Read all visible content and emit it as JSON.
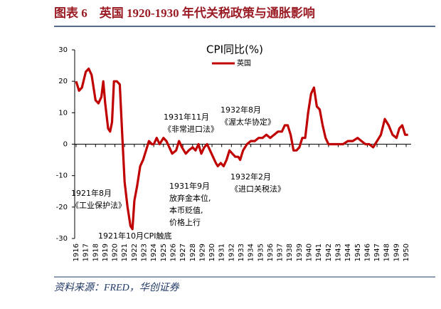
{
  "header": {
    "title": "图表 6　英国 1920-1930 年代关税政策与通胀影响"
  },
  "source": "资料来源：FRED，华创证券",
  "chart_data": {
    "type": "line",
    "title": "CPI同比(%)",
    "series": [
      {
        "name": "英国",
        "color": "#c00000",
        "x": [
          1916.0,
          1916.3,
          1916.6,
          1917.0,
          1917.3,
          1917.6,
          1918.0,
          1918.3,
          1918.6,
          1918.8,
          1919.0,
          1919.3,
          1919.5,
          1919.7,
          1919.9,
          1920.2,
          1920.5,
          1920.8,
          1921.0,
          1921.3,
          1921.6,
          1921.8,
          1922.0,
          1922.3,
          1922.6,
          1922.9,
          1923.2,
          1923.5,
          1923.8,
          1924.0,
          1924.3,
          1924.6,
          1925.0,
          1925.3,
          1925.6,
          1925.9,
          1926.3,
          1926.6,
          1926.9,
          1927.3,
          1927.6,
          1928.0,
          1928.3,
          1928.6,
          1928.9,
          1929.2,
          1929.5,
          1929.8,
          1930.1,
          1930.4,
          1930.6,
          1930.9,
          1931.2,
          1931.5,
          1931.8,
          1932.1,
          1932.4,
          1932.7,
          1932.9,
          1933.2,
          1933.6,
          1934.0,
          1934.4,
          1934.8,
          1935.2,
          1935.6,
          1936.0,
          1936.4,
          1936.8,
          1937.2,
          1937.5,
          1937.8,
          1938.1,
          1938.4,
          1938.7,
          1939.0,
          1939.3,
          1939.6,
          1939.9,
          1940.2,
          1940.5,
          1940.8,
          1941.1,
          1941.4,
          1941.7,
          1942.0,
          1942.5,
          1943.0,
          1943.5,
          1944.0,
          1944.5,
          1945.0,
          1945.4,
          1945.8,
          1946.2,
          1946.6,
          1947.0,
          1947.4,
          1947.8,
          1948.2,
          1948.6,
          1949.0,
          1949.3,
          1949.6,
          1949.9,
          1950.2
        ],
        "values": [
          20,
          17,
          18,
          23,
          24,
          22,
          14,
          13,
          15,
          20,
          13,
          5,
          4,
          7,
          20,
          20,
          19,
          0,
          -12,
          -20,
          -26,
          -27,
          -18,
          -13,
          -7,
          -5,
          -2,
          1,
          0,
          0,
          2,
          0,
          2,
          1,
          -1,
          -3,
          -2,
          1,
          -1,
          -3,
          -2,
          -1,
          -2,
          0,
          -3,
          -1,
          0,
          -2,
          -4,
          -6,
          -7,
          -6,
          -7,
          -5,
          -2,
          -3,
          -4,
          -4,
          -5,
          -2,
          0,
          1,
          1,
          2,
          2,
          3,
          2,
          3,
          4,
          4,
          6,
          6,
          3,
          -2,
          -2,
          -1,
          2,
          2,
          10,
          16,
          18,
          12,
          11,
          6,
          2,
          0,
          0,
          0,
          0,
          1,
          1,
          2,
          1,
          0,
          0,
          -1,
          1,
          3,
          8,
          6,
          3,
          2,
          5,
          6,
          3,
          3
        ]
      }
    ],
    "xlim": [
      1916,
      1950.5
    ],
    "xticks": [
      1916,
      1917,
      1918,
      1919,
      1920,
      1921,
      1922,
      1923,
      1924,
      1925,
      1926,
      1927,
      1928,
      1929,
      1930,
      1931,
      1932,
      1933,
      1934,
      1935,
      1936,
      1937,
      1938,
      1939,
      1940,
      1941,
      1942,
      1943,
      1944,
      1945,
      1946,
      1947,
      1948,
      1949,
      1950
    ],
    "ylim": [
      -30,
      30
    ],
    "yticks": [
      -30,
      -20,
      -10,
      0,
      10,
      20,
      30
    ],
    "legend": "top",
    "annotations": [
      {
        "lines": [
          "1921年8月",
          "《工业保护法》"
        ]
      },
      {
        "lines": [
          "1921年10月CPI触底"
        ]
      },
      {
        "lines": [
          "1931年11月",
          "《非常进口法》"
        ]
      },
      {
        "lines": [
          "1932年8月",
          "《渥太华协定》"
        ]
      },
      {
        "lines": [
          "1931年9月",
          "放弃金本位,",
          "本币贬值,",
          "价格上行"
        ]
      },
      {
        "lines": [
          "1932年2月",
          "《进口关税法》"
        ]
      }
    ]
  }
}
